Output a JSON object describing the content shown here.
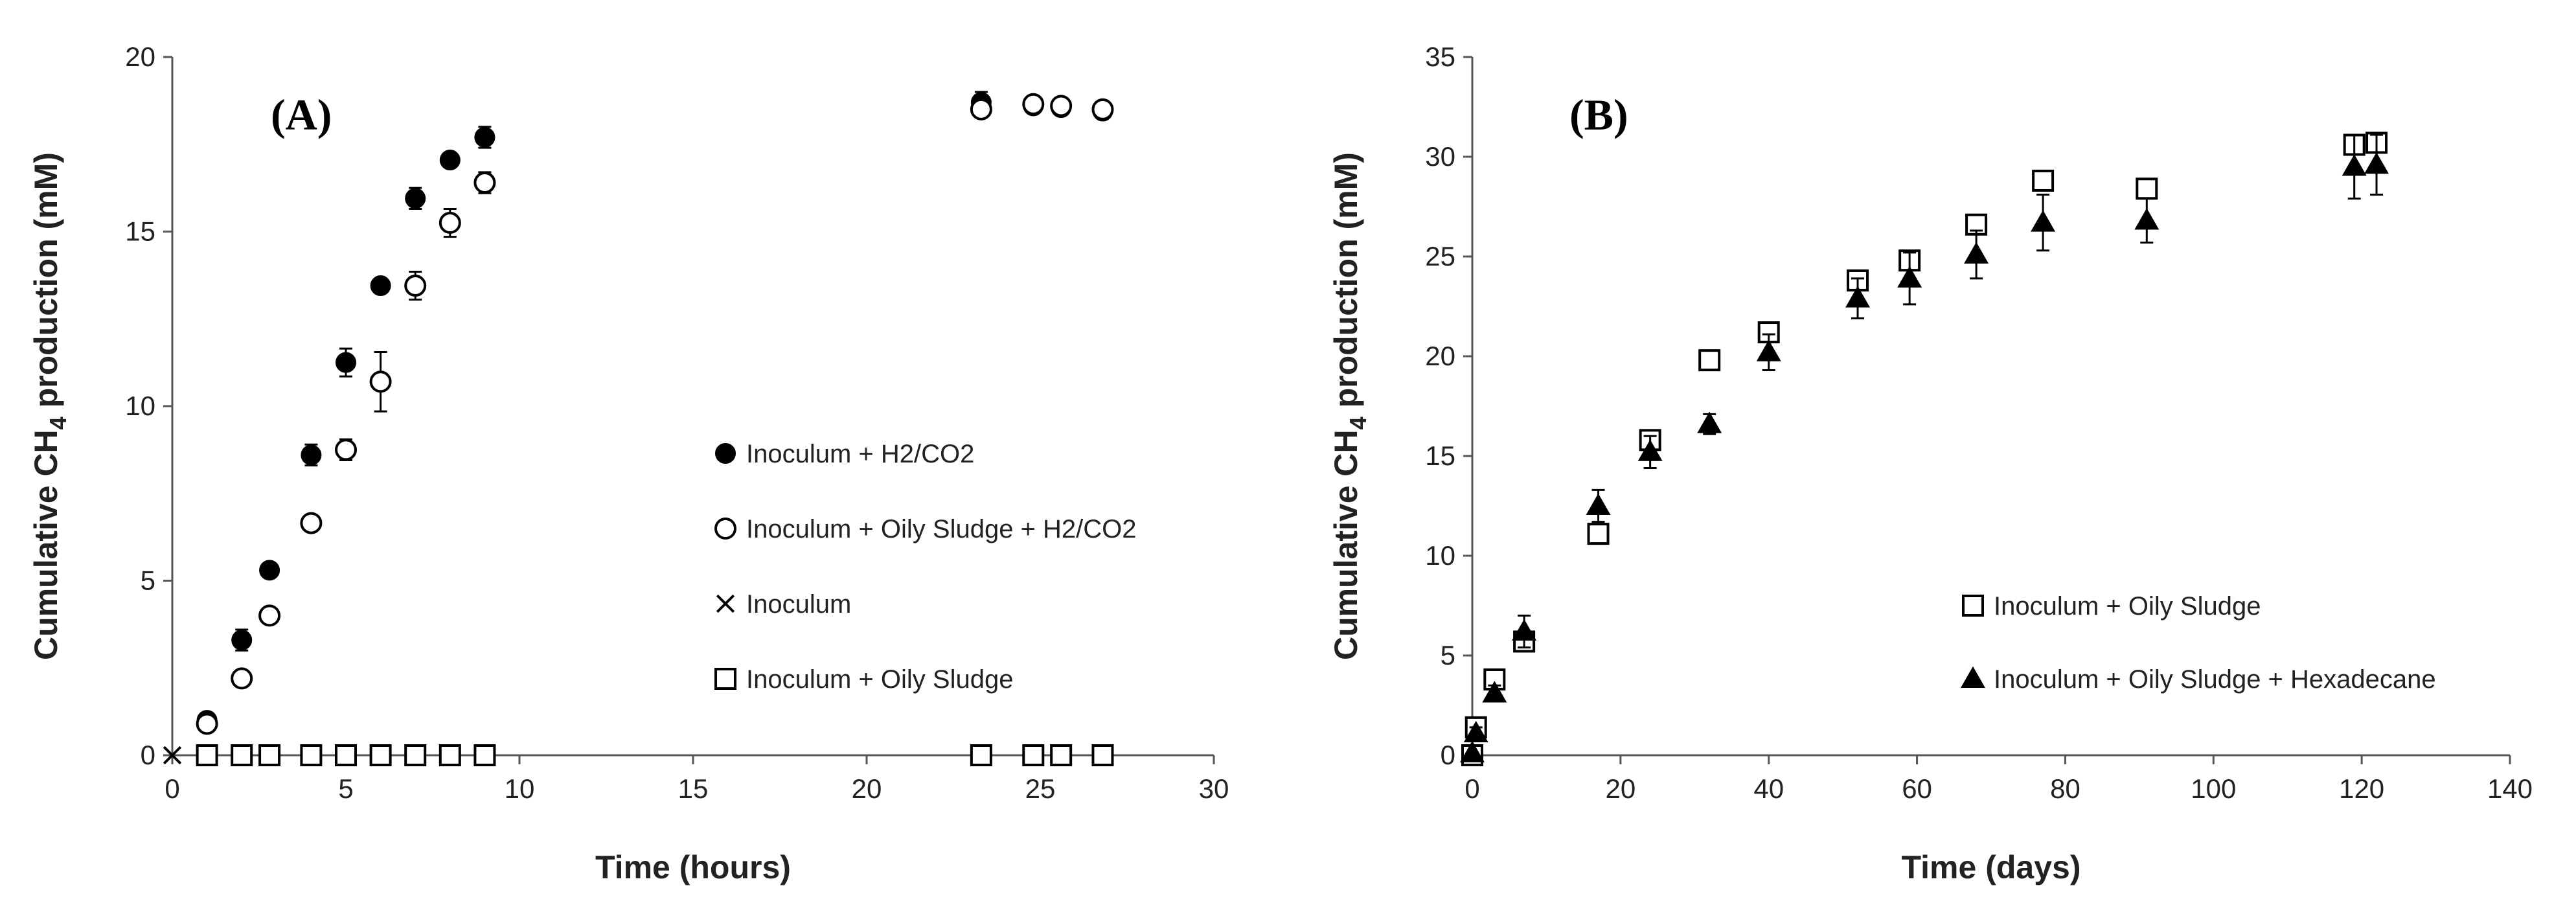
{
  "chart_data": [
    {
      "type": "scatter",
      "panel_label": "(A)",
      "xlabel": "Time (hours)",
      "ylabel": "Cumulative CH",
      "ylabel_sub": "4",
      "ylabel_suffix": " production (mM)",
      "xlim": [
        0,
        30
      ],
      "ylim": [
        0,
        20
      ],
      "xticks": [
        0,
        5,
        10,
        15,
        20,
        25,
        30
      ],
      "yticks": [
        0,
        5,
        10,
        15,
        20
      ],
      "grid": false,
      "legend_position": "center-right",
      "series": [
        {
          "name": "Inoculum + H2/CO2",
          "marker": "filled-circle",
          "points": [
            {
              "x": 1,
              "y": 1.0,
              "err": 0.15
            },
            {
              "x": 2,
              "y": 3.3,
              "err": 0.3
            },
            {
              "x": 2.8,
              "y": 5.3,
              "err": 0.1
            },
            {
              "x": 4,
              "y": 8.6,
              "err": 0.3
            },
            {
              "x": 5,
              "y": 11.25,
              "err": 0.4
            },
            {
              "x": 6,
              "y": 13.45,
              "err": 0.15
            },
            {
              "x": 7,
              "y": 15.95,
              "err": 0.3
            },
            {
              "x": 8,
              "y": 17.05,
              "err": 0.1
            },
            {
              "x": 9,
              "y": 17.7,
              "err": 0.3
            },
            {
              "x": 23.3,
              "y": 18.7,
              "err": 0.3
            },
            {
              "x": 24.8,
              "y": 18.6,
              "err": 0.2
            },
            {
              "x": 25.6,
              "y": 18.55,
              "err": 0.15
            },
            {
              "x": 26.8,
              "y": 18.45,
              "err": 0.15
            }
          ]
        },
        {
          "name": "Inoculum + Oily Sludge + H2/CO2",
          "marker": "open-circle",
          "points": [
            {
              "x": 1,
              "y": 0.9,
              "err": 0.1
            },
            {
              "x": 2,
              "y": 2.2,
              "err": 0.1
            },
            {
              "x": 2.8,
              "y": 4.0,
              "err": 0.1
            },
            {
              "x": 4,
              "y": 6.65,
              "err": 0.1
            },
            {
              "x": 5,
              "y": 8.75,
              "err": 0.3
            },
            {
              "x": 6,
              "y": 10.7,
              "err": 0.85
            },
            {
              "x": 7,
              "y": 13.45,
              "err": 0.4
            },
            {
              "x": 8,
              "y": 15.25,
              "err": 0.4
            },
            {
              "x": 9,
              "y": 16.4,
              "err": 0.3
            },
            {
              "x": 23.3,
              "y": 18.5,
              "err": 0.15
            },
            {
              "x": 24.8,
              "y": 18.65,
              "err": 0.15
            },
            {
              "x": 25.6,
              "y": 18.6,
              "err": 0.15
            },
            {
              "x": 26.8,
              "y": 18.5,
              "err": 0.15
            }
          ]
        },
        {
          "name": "Inoculum",
          "marker": "cross",
          "points": [
            {
              "x": 0,
              "y": 0
            },
            {
              "x": 1,
              "y": 0
            },
            {
              "x": 2,
              "y": 0
            },
            {
              "x": 2.8,
              "y": 0
            },
            {
              "x": 4,
              "y": 0
            },
            {
              "x": 5,
              "y": 0
            },
            {
              "x": 6,
              "y": 0
            },
            {
              "x": 7,
              "y": 0
            },
            {
              "x": 8,
              "y": 0
            },
            {
              "x": 9,
              "y": 0
            },
            {
              "x": 23.3,
              "y": 0
            },
            {
              "x": 24.8,
              "y": 0
            },
            {
              "x": 25.6,
              "y": 0
            },
            {
              "x": 26.8,
              "y": 0
            }
          ]
        },
        {
          "name": "Inoculum + Oily Sludge",
          "marker": "open-square",
          "points": [
            {
              "x": 1,
              "y": 0
            },
            {
              "x": 2,
              "y": 0
            },
            {
              "x": 2.8,
              "y": 0
            },
            {
              "x": 4,
              "y": 0
            },
            {
              "x": 5,
              "y": 0
            },
            {
              "x": 6,
              "y": 0
            },
            {
              "x": 7,
              "y": 0
            },
            {
              "x": 8,
              "y": 0
            },
            {
              "x": 9,
              "y": 0
            },
            {
              "x": 23.3,
              "y": 0
            },
            {
              "x": 24.8,
              "y": 0
            },
            {
              "x": 25.6,
              "y": 0
            },
            {
              "x": 26.8,
              "y": 0
            }
          ]
        }
      ]
    },
    {
      "type": "scatter",
      "panel_label": "(B)",
      "xlabel": "Time (days)",
      "ylabel": "Cumulative CH",
      "ylabel_sub": "4",
      "ylabel_suffix": " production (mM)",
      "xlim": [
        0,
        140
      ],
      "ylim": [
        0,
        35
      ],
      "xticks": [
        0,
        20,
        40,
        60,
        80,
        100,
        120,
        140
      ],
      "yticks": [
        0,
        5,
        10,
        15,
        20,
        25,
        30,
        35
      ],
      "grid": false,
      "legend_position": "bottom-right",
      "series": [
        {
          "name": "Inoculum + Oily Sludge",
          "marker": "open-square",
          "points": [
            {
              "x": 0,
              "y": 0,
              "err": 0
            },
            {
              "x": 0.5,
              "y": 1.4,
              "err": 0.2
            },
            {
              "x": 3,
              "y": 3.8,
              "err": 0.2
            },
            {
              "x": 7,
              "y": 5.7,
              "err": 0.4
            },
            {
              "x": 17,
              "y": 11.1,
              "err": 0.3
            },
            {
              "x": 24,
              "y": 15.8,
              "err": 0.3
            },
            {
              "x": 32,
              "y": 19.8,
              "err": 0.2
            },
            {
              "x": 40,
              "y": 21.2,
              "err": 0.3
            },
            {
              "x": 52,
              "y": 23.8,
              "err": 0.4
            },
            {
              "x": 59,
              "y": 24.8,
              "err": 0.3
            },
            {
              "x": 68,
              "y": 26.6,
              "err": 0.3
            },
            {
              "x": 77,
              "y": 28.8,
              "err": 0.3
            },
            {
              "x": 91,
              "y": 28.4,
              "err": 0.3
            },
            {
              "x": 119,
              "y": 30.6,
              "err": 0.3
            },
            {
              "x": 122,
              "y": 30.7,
              "err": 0.3
            }
          ]
        },
        {
          "name": "Inoculum + Oily Sludge + Hexadecane",
          "marker": "filled-triangle",
          "points": [
            {
              "x": 0,
              "y": 0.1,
              "err": 0
            },
            {
              "x": 0.5,
              "y": 1.1,
              "err": 0.3
            },
            {
              "x": 3,
              "y": 3.1,
              "err": 0.4
            },
            {
              "x": 7,
              "y": 6.2,
              "err": 0.8
            },
            {
              "x": 17,
              "y": 12.5,
              "err": 0.8
            },
            {
              "x": 24,
              "y": 15.2,
              "err": 0.8
            },
            {
              "x": 32,
              "y": 16.6,
              "err": 0.5
            },
            {
              "x": 40,
              "y": 20.2,
              "err": 0.9
            },
            {
              "x": 52,
              "y": 22.9,
              "err": 1.0
            },
            {
              "x": 59,
              "y": 23.9,
              "err": 1.3
            },
            {
              "x": 68,
              "y": 25.1,
              "err": 1.2
            },
            {
              "x": 77,
              "y": 26.7,
              "err": 1.4
            },
            {
              "x": 91,
              "y": 26.8,
              "err": 1.1
            },
            {
              "x": 119,
              "y": 29.5,
              "err": 1.6
            },
            {
              "x": 122,
              "y": 29.6,
              "err": 1.5
            }
          ]
        }
      ]
    }
  ]
}
